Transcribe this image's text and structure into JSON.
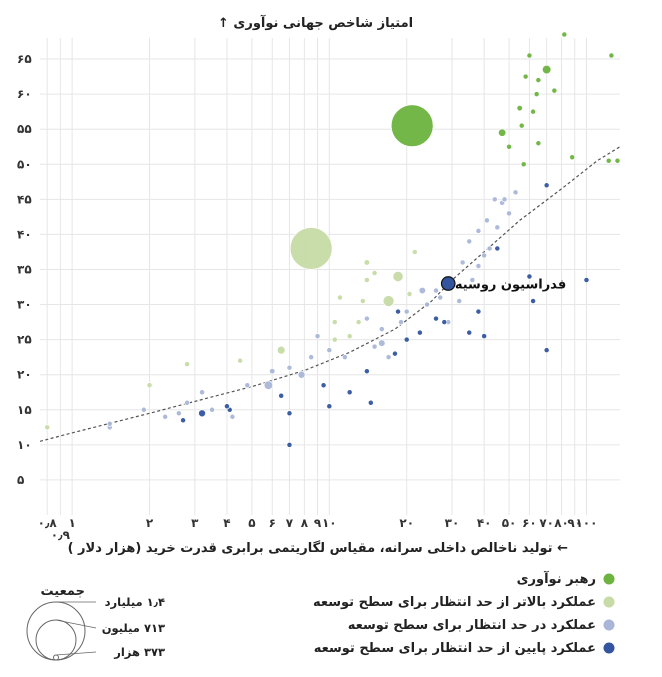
{
  "chart_data": {
    "type": "scatter",
    "title": "",
    "ylabel": "امتیاز شاخص جهانی نوآوری ↑",
    "xlabel": "← تولید ناخالص داخلی سرانه، مقیاس لگاریتمی برابری قدرت خرید (هزار دلار )",
    "xscale": "log",
    "xlim": [
      0.75,
      135
    ],
    "ylim": [
      0,
      68
    ],
    "y_ticks": [
      {
        "v": 5,
        "label": "۵"
      },
      {
        "v": 10,
        "label": "۱۰"
      },
      {
        "v": 15,
        "label": "۱۵"
      },
      {
        "v": 20,
        "label": "۲۰"
      },
      {
        "v": 25,
        "label": "۲۵"
      },
      {
        "v": 30,
        "label": "۳۰"
      },
      {
        "v": 35,
        "label": "۳۵"
      },
      {
        "v": 40,
        "label": "۴۰"
      },
      {
        "v": 45,
        "label": "۴۵"
      },
      {
        "v": 50,
        "label": "۵۰"
      },
      {
        "v": 55,
        "label": "۵۵"
      },
      {
        "v": 60,
        "label": "۶۰"
      },
      {
        "v": 65,
        "label": "۶۵"
      }
    ],
    "x_ticks": [
      {
        "v": 0.8,
        "label": "۰٫۸"
      },
      {
        "v": 0.9,
        "label": "۰٫۹"
      },
      {
        "v": 1,
        "label": "۱"
      },
      {
        "v": 2,
        "label": "۲"
      },
      {
        "v": 3,
        "label": "۳"
      },
      {
        "v": 4,
        "label": "۴"
      },
      {
        "v": 5,
        "label": "۵"
      },
      {
        "v": 6,
        "label": "۶"
      },
      {
        "v": 7,
        "label": "۷"
      },
      {
        "v": 8,
        "label": "۸"
      },
      {
        "v": 9,
        "label": "۹"
      },
      {
        "v": 10,
        "label": "۱۰"
      },
      {
        "v": 20,
        "label": "۲۰"
      },
      {
        "v": 30,
        "label": "۳۰"
      },
      {
        "v": 40,
        "label": "۴۰"
      },
      {
        "v": 50,
        "label": "۵۰"
      },
      {
        "v": 60,
        "label": "۶۰"
      },
      {
        "v": 70,
        "label": "۷۰"
      },
      {
        "v": 80,
        "label": "۸۰"
      },
      {
        "v": 90,
        "label": "۹۰"
      },
      {
        "v": 100,
        "label": "۱۰۰"
      }
    ],
    "grid": true,
    "legend_position": "bottom-right",
    "series": [
      {
        "name": "رهبر نوآوری",
        "color": "#6db33f",
        "points": [
          {
            "x": 21,
            "y": 55.5,
            "pop": 1400
          },
          {
            "x": 70,
            "y": 63.5,
            "pop": 60
          },
          {
            "x": 60,
            "y": 65.5,
            "pop": 9
          },
          {
            "x": 58,
            "y": 62.5,
            "pop": 17
          },
          {
            "x": 64,
            "y": 60,
            "pop": 10
          },
          {
            "x": 55,
            "y": 58,
            "pop": 25
          },
          {
            "x": 62,
            "y": 57.5,
            "pop": 9
          },
          {
            "x": 47,
            "y": 54.5,
            "pop": 45
          },
          {
            "x": 56,
            "y": 55.5,
            "pop": 17
          },
          {
            "x": 50,
            "y": 52.5,
            "pop": 10
          },
          {
            "x": 65,
            "y": 53,
            "pop": 5.5
          },
          {
            "x": 75,
            "y": 60.5,
            "pop": 6
          },
          {
            "x": 57,
            "y": 50,
            "pop": 9
          },
          {
            "x": 65,
            "y": 62,
            "pop": 2
          },
          {
            "x": 82,
            "y": 68.5,
            "pop": 1
          },
          {
            "x": 125,
            "y": 65.5,
            "pop": 0.5
          },
          {
            "x": 122,
            "y": 50.5,
            "pop": 0.7
          },
          {
            "x": 132,
            "y": 50.5,
            "pop": 0.4
          },
          {
            "x": 88,
            "y": 51,
            "pop": 0.4
          }
        ]
      },
      {
        "name": "عملکرد بالاتر از حد انتظار برای سطح توسعه",
        "color": "#c6dba5",
        "points": [
          {
            "x": 8.5,
            "y": 38,
            "pop": 1400
          },
          {
            "x": 6.5,
            "y": 23.5,
            "pop": 50
          },
          {
            "x": 14,
            "y": 33.5,
            "pop": 20
          },
          {
            "x": 17,
            "y": 30.5,
            "pop": 96
          },
          {
            "x": 18.5,
            "y": 34,
            "pop": 85
          },
          {
            "x": 21.5,
            "y": 37.5,
            "pop": 20
          },
          {
            "x": 14,
            "y": 36,
            "pop": 25
          },
          {
            "x": 11,
            "y": 31,
            "pop": 5
          },
          {
            "x": 10.5,
            "y": 27.5,
            "pop": 10
          },
          {
            "x": 10.5,
            "y": 25,
            "pop": 9
          },
          {
            "x": 13,
            "y": 27.5,
            "pop": 3
          },
          {
            "x": 15,
            "y": 34.5,
            "pop": 2
          },
          {
            "x": 2,
            "y": 18.5,
            "pop": 5
          },
          {
            "x": 0.8,
            "y": 12.5,
            "pop": 3
          },
          {
            "x": 4.5,
            "y": 22,
            "pop": 3
          },
          {
            "x": 2.8,
            "y": 21.5,
            "pop": 2
          },
          {
            "x": 12,
            "y": 25.5,
            "pop": 1.5
          },
          {
            "x": 13.5,
            "y": 30.5,
            "pop": 1.5
          },
          {
            "x": 20.5,
            "y": 31.5,
            "pop": 1.2
          }
        ]
      },
      {
        "name": "عملکرد در حد انتظار برای سطح توسعه",
        "color": "#a9b6d8",
        "points": [
          {
            "x": 5.8,
            "y": 18.5,
            "pop": 60
          },
          {
            "x": 7.8,
            "y": 20,
            "pop": 40
          },
          {
            "x": 6,
            "y": 20.5,
            "pop": 25
          },
          {
            "x": 16,
            "y": 24.5,
            "pop": 35
          },
          {
            "x": 23,
            "y": 32,
            "pop": 35
          },
          {
            "x": 40,
            "y": 37,
            "pop": 20
          },
          {
            "x": 50,
            "y": 43,
            "pop": 15
          },
          {
            "x": 47,
            "y": 44.5,
            "pop": 15
          },
          {
            "x": 3.2,
            "y": 17.5,
            "pop": 20
          },
          {
            "x": 2.8,
            "y": 16,
            "pop": 15
          },
          {
            "x": 1.4,
            "y": 12.5,
            "pop": 10
          },
          {
            "x": 1.4,
            "y": 13,
            "pop": 10
          },
          {
            "x": 2.6,
            "y": 14.5,
            "pop": 9
          },
          {
            "x": 4.2,
            "y": 14,
            "pop": 9
          },
          {
            "x": 4.8,
            "y": 18.5,
            "pop": 9
          },
          {
            "x": 8.5,
            "y": 22.5,
            "pop": 9
          },
          {
            "x": 10,
            "y": 23.5,
            "pop": 15
          },
          {
            "x": 11.5,
            "y": 22.5,
            "pop": 9
          },
          {
            "x": 15,
            "y": 24,
            "pop": 9
          },
          {
            "x": 17,
            "y": 22.5,
            "pop": 9
          },
          {
            "x": 19,
            "y": 27.5,
            "pop": 9
          },
          {
            "x": 26,
            "y": 32,
            "pop": 9
          },
          {
            "x": 29,
            "y": 27.5,
            "pop": 9
          },
          {
            "x": 33,
            "y": 36,
            "pop": 9
          },
          {
            "x": 35,
            "y": 39,
            "pop": 15
          },
          {
            "x": 45,
            "y": 41,
            "pop": 9
          },
          {
            "x": 41,
            "y": 42,
            "pop": 9
          },
          {
            "x": 38,
            "y": 40.5,
            "pop": 9
          },
          {
            "x": 44,
            "y": 45,
            "pop": 5
          },
          {
            "x": 53,
            "y": 46,
            "pop": 5
          },
          {
            "x": 9,
            "y": 25.5,
            "pop": 5
          },
          {
            "x": 14,
            "y": 28,
            "pop": 5
          },
          {
            "x": 16,
            "y": 26.5,
            "pop": 5
          },
          {
            "x": 20,
            "y": 29,
            "pop": 5
          },
          {
            "x": 7,
            "y": 21,
            "pop": 5
          },
          {
            "x": 3.5,
            "y": 15,
            "pop": 4
          },
          {
            "x": 1.9,
            "y": 15,
            "pop": 4
          },
          {
            "x": 2.3,
            "y": 14,
            "pop": 4
          },
          {
            "x": 36,
            "y": 33.5,
            "pop": 5
          },
          {
            "x": 42,
            "y": 38,
            "pop": 5
          },
          {
            "x": 32,
            "y": 30.5,
            "pop": 5
          },
          {
            "x": 24,
            "y": 30,
            "pop": 5
          },
          {
            "x": 27,
            "y": 31,
            "pop": 5
          },
          {
            "x": 48,
            "y": 45,
            "pop": 5
          },
          {
            "x": 38,
            "y": 35.5,
            "pop": 5
          }
        ]
      },
      {
        "name": "عملکرد پایین از حد انتظار برای سطح توسعه",
        "color": "#3355a0",
        "points": [
          {
            "x": 29,
            "y": 33,
            "pop": 145
          },
          {
            "x": 3.2,
            "y": 14.5,
            "pop": 40
          },
          {
            "x": 2.7,
            "y": 13.5,
            "pop": 12
          },
          {
            "x": 4.1,
            "y": 15,
            "pop": 9
          },
          {
            "x": 4,
            "y": 15.5,
            "pop": 9
          },
          {
            "x": 7,
            "y": 10,
            "pop": 15
          },
          {
            "x": 14.5,
            "y": 16,
            "pop": 20
          },
          {
            "x": 14,
            "y": 20.5,
            "pop": 9
          },
          {
            "x": 10,
            "y": 15.5,
            "pop": 5
          },
          {
            "x": 12,
            "y": 17.5,
            "pop": 4
          },
          {
            "x": 6.5,
            "y": 17,
            "pop": 4
          },
          {
            "x": 7,
            "y": 14.5,
            "pop": 4
          },
          {
            "x": 9.5,
            "y": 18.5,
            "pop": 3
          },
          {
            "x": 18,
            "y": 23,
            "pop": 5
          },
          {
            "x": 22.5,
            "y": 26,
            "pop": 5
          },
          {
            "x": 26,
            "y": 28,
            "pop": 9
          },
          {
            "x": 28,
            "y": 27.5,
            "pop": 5
          },
          {
            "x": 20,
            "y": 25,
            "pop": 3
          },
          {
            "x": 35,
            "y": 26,
            "pop": 3
          },
          {
            "x": 40,
            "y": 25.5,
            "pop": 3
          },
          {
            "x": 45,
            "y": 38,
            "pop": 12
          },
          {
            "x": 60,
            "y": 34,
            "pop": 9
          },
          {
            "x": 70,
            "y": 47,
            "pop": 3
          },
          {
            "x": 62,
            "y": 30.5,
            "pop": 2
          },
          {
            "x": 100,
            "y": 33.5,
            "pop": 1
          },
          {
            "x": 70,
            "y": 23.5,
            "pop": 1
          },
          {
            "x": 38,
            "y": 29,
            "pop": 3
          },
          {
            "x": 18.5,
            "y": 29,
            "pop": 2
          }
        ]
      }
    ],
    "trendline": {
      "style": "dashed",
      "color": "#555555",
      "points": [
        [
          0.75,
          10.5
        ],
        [
          1,
          11.7
        ],
        [
          2,
          14.5
        ],
        [
          3,
          16.2
        ],
        [
          5,
          18.3
        ],
        [
          8,
          20.6
        ],
        [
          12,
          23.2
        ],
        [
          18,
          26.5
        ],
        [
          25,
          30.5
        ],
        [
          30,
          33.5
        ],
        [
          40,
          37.5
        ],
        [
          55,
          42
        ],
        [
          80,
          46.5
        ],
        [
          110,
          50.5
        ],
        [
          135,
          52.5
        ]
      ]
    },
    "annotations": [
      {
        "text": "فدراسیون روسیه",
        "x": 29,
        "y": 33
      }
    ],
    "size_legend": {
      "title": "جمعیت",
      "items": [
        {
          "label": "۱٫۴ میلیارد",
          "pop": 1400
        },
        {
          "label": "۷۱۳ میلیون",
          "pop": 713
        },
        {
          "label": "۳۷۳ هزار",
          "pop": 0.373
        }
      ]
    }
  }
}
